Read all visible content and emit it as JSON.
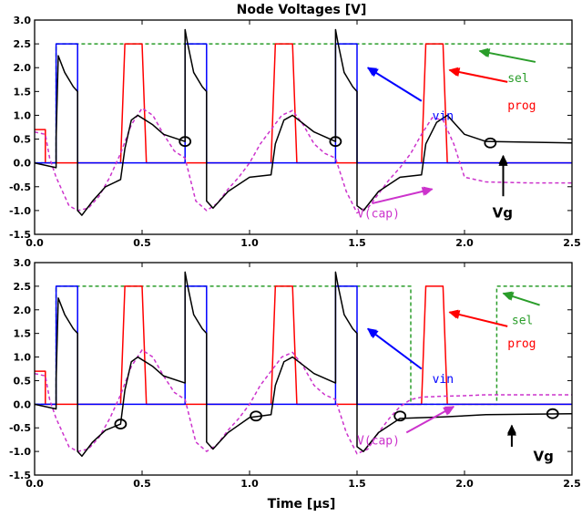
{
  "chart_data": {
    "title": "Node Voltages [V]",
    "xlabel": "Time [µs]",
    "colors": {
      "sel": "#2a9d2a",
      "prog": "#ff0000",
      "vin": "#0000ff",
      "vcap": "#cc33cc",
      "vg": "#000000"
    },
    "panels": [
      {
        "type": "line",
        "xlim": [
          0,
          2.5
        ],
        "ylim": [
          -1.5,
          3.0
        ],
        "xticks": [
          "0.0",
          "0.5",
          "1.0",
          "1.5",
          "2.0",
          "2.5"
        ],
        "yticks": [
          "-1.5",
          "-1.0",
          "-0.5",
          "0.0",
          "0.5",
          "1.0",
          "1.5",
          "2.0",
          "2.5",
          "3.0"
        ],
        "series": [
          {
            "name": "sel",
            "style": "dashed",
            "color": "#2a9d2a",
            "x": [
              0,
              0.1,
              0.1,
              2.5
            ],
            "y": [
              0,
              0,
              2.5,
              2.5
            ]
          },
          {
            "name": "prog",
            "style": "solid",
            "color": "#ff0000",
            "x": [
              0,
              0.05,
              0.05,
              0.4,
              0.42,
              0.5,
              0.52,
              1.1,
              1.12,
              1.2,
              1.22,
              1.8,
              1.82,
              1.9,
              1.92,
              2.5
            ],
            "y": [
              0.7,
              0.7,
              0,
              0,
              2.5,
              2.5,
              0,
              0,
              2.5,
              2.5,
              0,
              0,
              2.5,
              2.5,
              0,
              0
            ]
          },
          {
            "name": "vin",
            "style": "solid",
            "color": "#0000ff",
            "x": [
              0,
              0.1,
              0.1,
              0.2,
              0.2,
              0.7,
              0.7,
              0.8,
              0.8,
              1.4,
              1.4,
              1.5,
              1.5,
              2.5
            ],
            "y": [
              0,
              0,
              2.5,
              2.5,
              0,
              0,
              2.5,
              2.5,
              0,
              0,
              2.5,
              2.5,
              0,
              0
            ]
          },
          {
            "name": "V(cap)",
            "style": "dashed",
            "color": "#cc33cc",
            "x": [
              0,
              0.05,
              0.07,
              0.1,
              0.13,
              0.16,
              0.2,
              0.25,
              0.3,
              0.35,
              0.4,
              0.45,
              0.5,
              0.55,
              0.6,
              0.65,
              0.7,
              0.75,
              0.8,
              0.85,
              0.9,
              0.95,
              1.0,
              1.05,
              1.1,
              1.15,
              1.2,
              1.25,
              1.3,
              1.35,
              1.4,
              1.45,
              1.5,
              1.55,
              1.6,
              1.65,
              1.7,
              1.75,
              1.8,
              1.85,
              1.9,
              1.95,
              2.0,
              2.1,
              2.3,
              2.5
            ],
            "y": [
              0.65,
              0.6,
              0.1,
              -0.3,
              -0.6,
              -0.9,
              -1.0,
              -0.95,
              -0.7,
              -0.3,
              0.2,
              0.8,
              1.15,
              1.0,
              0.6,
              0.25,
              0.1,
              -0.8,
              -1.0,
              -0.85,
              -0.55,
              -0.3,
              0.0,
              0.4,
              0.7,
              1.0,
              1.1,
              0.8,
              0.4,
              0.2,
              0.1,
              -0.6,
              -1.05,
              -0.95,
              -0.65,
              -0.35,
              -0.1,
              0.2,
              0.6,
              0.95,
              0.9,
              0.4,
              -0.3,
              -0.4,
              -0.42,
              -0.42
            ]
          },
          {
            "name": "Vg",
            "style": "solid",
            "color": "#000000",
            "x": [
              0,
              0.1,
              0.1,
              0.11,
              0.14,
              0.18,
              0.2,
              0.2,
              0.22,
              0.27,
              0.33,
              0.4,
              0.42,
              0.45,
              0.48,
              0.55,
              0.6,
              0.7,
              0.7,
              0.71,
              0.74,
              0.78,
              0.8,
              0.8,
              0.83,
              0.9,
              1.0,
              1.1,
              1.12,
              1.16,
              1.2,
              1.3,
              1.4,
              1.4,
              1.41,
              1.44,
              1.48,
              1.5,
              1.5,
              1.53,
              1.6,
              1.7,
              1.8,
              1.82,
              1.87,
              1.92,
              2.0,
              2.1,
              2.5
            ],
            "y": [
              0,
              -0.1,
              0.5,
              2.25,
              1.9,
              1.6,
              1.5,
              -1.0,
              -1.1,
              -0.8,
              -0.5,
              -0.35,
              0.3,
              0.9,
              1.0,
              0.8,
              0.6,
              0.45,
              2.8,
              2.55,
              1.9,
              1.6,
              1.5,
              -0.8,
              -0.95,
              -0.6,
              -0.3,
              -0.25,
              0.4,
              0.9,
              1.0,
              0.65,
              0.45,
              2.8,
              2.55,
              1.9,
              1.6,
              1.5,
              -0.9,
              -1.0,
              -0.6,
              -0.3,
              -0.25,
              0.4,
              0.85,
              1.0,
              0.6,
              0.45,
              0.42
            ]
          }
        ],
        "markers": [
          {
            "x": 0.7,
            "y": 0.45
          },
          {
            "x": 1.4,
            "y": 0.45
          },
          {
            "x": 2.12,
            "y": 0.42
          }
        ],
        "labels": [
          {
            "text": "sel",
            "series": "sel",
            "x": 2.2,
            "y": 1.7
          },
          {
            "text": "prog",
            "series": "prog",
            "x": 2.2,
            "y": 1.12
          },
          {
            "text": "vin",
            "series": "vin",
            "x": 1.85,
            "y": 0.9
          },
          {
            "text": "V(cap)",
            "series": "V(cap)",
            "x": 1.5,
            "y": -1.15
          },
          {
            "text": "Vg",
            "series": "Vg",
            "x": 2.13,
            "y": -1.15,
            "bold": true
          }
        ],
        "arrows": [
          {
            "series": "sel",
            "from": [
              2.33,
              2.12
            ],
            "to": [
              2.07,
              2.35
            ]
          },
          {
            "series": "prog",
            "from": [
              2.2,
              1.7
            ],
            "to": [
              1.93,
              1.95
            ]
          },
          {
            "series": "vin",
            "from": [
              1.8,
              1.3
            ],
            "to": [
              1.55,
              2.0
            ]
          },
          {
            "series": "V(cap)",
            "from": [
              1.57,
              -0.85
            ],
            "to": [
              1.85,
              -0.55
            ]
          },
          {
            "series": "Vg",
            "from": [
              2.18,
              -0.7
            ],
            "to": [
              2.18,
              0.15
            ]
          }
        ]
      },
      {
        "type": "line",
        "xlim": [
          0,
          2.5
        ],
        "ylim": [
          -1.5,
          3.0
        ],
        "xticks": [
          "0.0",
          "0.5",
          "1.0",
          "1.5",
          "2.0",
          "2.5"
        ],
        "yticks": [
          "-1.5",
          "-1.0",
          "-0.5",
          "0.0",
          "0.5",
          "1.0",
          "1.5",
          "2.0",
          "2.5",
          "3.0"
        ],
        "series": [
          {
            "name": "sel",
            "style": "dashed",
            "color": "#2a9d2a",
            "x": [
              0,
              0.1,
              0.1,
              1.75,
              1.75,
              2.15,
              2.15,
              2.5
            ],
            "y": [
              0,
              0,
              2.5,
              2.5,
              0,
              0,
              2.5,
              2.5
            ]
          },
          {
            "name": "prog",
            "style": "solid",
            "color": "#ff0000",
            "x": [
              0,
              0.05,
              0.05,
              0.4,
              0.42,
              0.5,
              0.52,
              1.1,
              1.12,
              1.2,
              1.22,
              1.8,
              1.82,
              1.9,
              1.92,
              2.5
            ],
            "y": [
              0.7,
              0.7,
              0,
              0,
              2.5,
              2.5,
              0,
              0,
              2.5,
              2.5,
              0,
              0,
              2.5,
              2.5,
              0,
              0
            ]
          },
          {
            "name": "vin",
            "style": "solid",
            "color": "#0000ff",
            "x": [
              0,
              0.1,
              0.1,
              0.2,
              0.2,
              0.7,
              0.7,
              0.8,
              0.8,
              1.4,
              1.4,
              1.5,
              1.5,
              2.5
            ],
            "y": [
              0,
              0,
              2.5,
              2.5,
              0,
              0,
              2.5,
              2.5,
              0,
              0,
              2.5,
              2.5,
              0,
              0
            ]
          },
          {
            "name": "V(cap)",
            "style": "dashed",
            "color": "#cc33cc",
            "x": [
              0,
              0.05,
              0.07,
              0.1,
              0.13,
              0.16,
              0.2,
              0.25,
              0.3,
              0.35,
              0.4,
              0.45,
              0.5,
              0.55,
              0.6,
              0.65,
              0.7,
              0.75,
              0.8,
              0.85,
              0.9,
              0.95,
              1.0,
              1.05,
              1.1,
              1.15,
              1.2,
              1.25,
              1.3,
              1.35,
              1.4,
              1.45,
              1.5,
              1.55,
              1.6,
              1.65,
              1.7,
              1.75,
              1.8,
              1.9,
              2.0,
              2.1,
              2.3,
              2.5
            ],
            "y": [
              0.65,
              0.6,
              0.1,
              -0.3,
              -0.6,
              -0.9,
              -1.0,
              -0.95,
              -0.7,
              -0.3,
              0.2,
              0.8,
              1.15,
              1.0,
              0.6,
              0.25,
              0.1,
              -0.8,
              -1.0,
              -0.85,
              -0.55,
              -0.3,
              0.0,
              0.4,
              0.7,
              1.0,
              1.1,
              0.8,
              0.4,
              0.2,
              0.1,
              -0.6,
              -1.05,
              -0.95,
              -0.6,
              -0.3,
              -0.05,
              0.1,
              0.15,
              0.17,
              0.18,
              0.2,
              0.2,
              0.2
            ]
          },
          {
            "name": "Vg",
            "style": "solid",
            "color": "#000000",
            "x": [
              0,
              0.1,
              0.1,
              0.11,
              0.14,
              0.18,
              0.2,
              0.2,
              0.22,
              0.27,
              0.33,
              0.4,
              0.42,
              0.45,
              0.48,
              0.55,
              0.6,
              0.7,
              0.7,
              0.71,
              0.74,
              0.78,
              0.8,
              0.8,
              0.83,
              0.9,
              1.0,
              1.1,
              1.12,
              1.16,
              1.2,
              1.3,
              1.4,
              1.4,
              1.41,
              1.44,
              1.48,
              1.5,
              1.5,
              1.53,
              1.6,
              1.7,
              1.9,
              2.1,
              2.3,
              2.5
            ],
            "y": [
              0,
              -0.1,
              0.5,
              2.25,
              1.9,
              1.6,
              1.5,
              -1.0,
              -1.1,
              -0.8,
              -0.55,
              -0.42,
              0.3,
              0.9,
              1.0,
              0.8,
              0.6,
              0.45,
              2.8,
              2.55,
              1.9,
              1.6,
              1.5,
              -0.8,
              -0.95,
              -0.6,
              -0.28,
              -0.22,
              0.4,
              0.9,
              1.0,
              0.65,
              0.45,
              2.8,
              2.55,
              1.9,
              1.6,
              1.5,
              -0.9,
              -1.0,
              -0.6,
              -0.3,
              -0.27,
              -0.22,
              -0.21,
              -0.2
            ]
          }
        ],
        "markers": [
          {
            "x": 0.4,
            "y": -0.42
          },
          {
            "x": 1.03,
            "y": -0.25
          },
          {
            "x": 1.7,
            "y": -0.25
          },
          {
            "x": 2.41,
            "y": -0.2
          }
        ],
        "labels": [
          {
            "text": "sel",
            "series": "sel",
            "x": 2.22,
            "y": 1.7
          },
          {
            "text": "prog",
            "series": "prog",
            "x": 2.2,
            "y": 1.2
          },
          {
            "text": "vin",
            "series": "vin",
            "x": 1.85,
            "y": 0.45
          },
          {
            "text": "V(cap)",
            "series": "V(cap)",
            "x": 1.5,
            "y": -0.85
          },
          {
            "text": "Vg",
            "series": "Vg",
            "x": 2.32,
            "y": -1.2,
            "bold": true
          }
        ],
        "arrows": [
          {
            "series": "sel",
            "from": [
              2.35,
              2.1
            ],
            "to": [
              2.18,
              2.35
            ]
          },
          {
            "series": "prog",
            "from": [
              2.2,
              1.65
            ],
            "to": [
              1.93,
              1.95
            ]
          },
          {
            "series": "vin",
            "from": [
              1.8,
              0.75
            ],
            "to": [
              1.55,
              1.6
            ]
          },
          {
            "series": "V(cap)",
            "from": [
              1.73,
              -0.6
            ],
            "to": [
              1.95,
              -0.05
            ]
          },
          {
            "series": "Vg",
            "from": [
              2.22,
              -0.9
            ],
            "to": [
              2.22,
              -0.45
            ]
          }
        ]
      }
    ]
  }
}
